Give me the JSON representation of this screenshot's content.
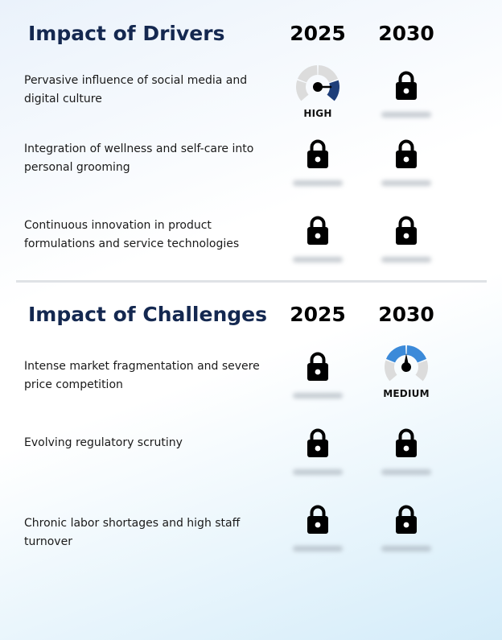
{
  "drivers": {
    "title": "Impact of Drivers",
    "year_2025": "2025",
    "year_2030": "2030",
    "rows": [
      {
        "label": "Pervasive influence of social media and digital culture",
        "y2025": {
          "type": "gauge",
          "label": "HIGH",
          "level": "high"
        },
        "y2030": {
          "type": "locked"
        }
      },
      {
        "label": "Integration of wellness and self-care into personal grooming",
        "y2025": {
          "type": "locked"
        },
        "y2030": {
          "type": "locked"
        }
      },
      {
        "label": "Continuous innovation in product formulations and service technologies",
        "y2025": {
          "type": "locked"
        },
        "y2030": {
          "type": "locked"
        }
      }
    ]
  },
  "challenges": {
    "title": "Impact of Challenges",
    "year_2025": "2025",
    "year_2030": "2030",
    "rows": [
      {
        "label": "Intense market fragmentation and severe price competition",
        "y2025": {
          "type": "locked"
        },
        "y2030": {
          "type": "gauge",
          "label": "MEDIUM",
          "level": "medium"
        }
      },
      {
        "label": "Evolving regulatory scrutiny",
        "y2025": {
          "type": "locked"
        },
        "y2030": {
          "type": "locked"
        }
      },
      {
        "label": "Chronic labor shortages and high staff turnover",
        "y2025": {
          "type": "locked"
        },
        "y2030": {
          "type": "locked"
        }
      }
    ]
  },
  "colors": {
    "title": "#142850",
    "gauge_high": "#1f3f7a",
    "gauge_medium": "#3b8ad9",
    "gauge_track": "#dcdcdc",
    "divider": "#dfe2e6"
  },
  "icons": {
    "locked": "lock-icon",
    "gauge": "gauge-icon"
  }
}
